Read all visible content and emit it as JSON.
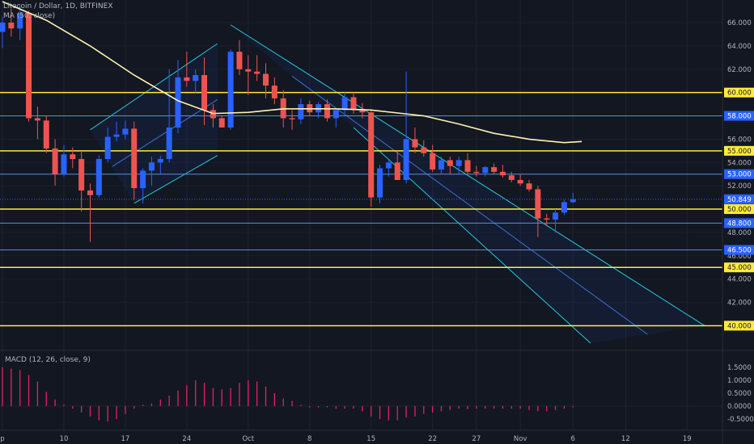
{
  "header": {
    "symbol": "Litecoin / Dollar, 1D, BITFINEX",
    "indicator": "MA (50, close)"
  },
  "macd": {
    "label": "MACD (12, 26, close, 9)",
    "ticks": [
      "1.5000",
      "1.0000",
      "0.5000",
      "0.0000",
      "-0.5000"
    ]
  },
  "colors": {
    "background": "#131722",
    "up": "#2962ff",
    "down": "#ef5350",
    "ma": "#fff3b0",
    "horizontal_yellow": "#ffeb3b",
    "horizontal_blue": "#5b8fd6",
    "channel": "#26c6da",
    "macd_hist": "#e91e63",
    "last_price": "#2962ff"
  },
  "chart_data": {
    "type": "candlestick",
    "price_axis": {
      "ticks": [
        40,
        42,
        44,
        46,
        48,
        50,
        52,
        54,
        56,
        58,
        60,
        62,
        64,
        66
      ],
      "tick_labels": [
        "40.000",
        "42.000",
        "44.000",
        "46.000",
        "48.000",
        "50.000",
        "52.000",
        "54.000",
        "56.000",
        "58.000",
        "60.000",
        "62.000",
        "64.000",
        "66.000"
      ]
    },
    "x_axis": {
      "labels": [
        "p",
        "10",
        "17",
        "24",
        "Oct",
        "8",
        "15",
        "22",
        "27",
        "Nov",
        "6",
        "12",
        "19"
      ],
      "label_day_index": [
        0,
        7,
        14,
        21,
        28,
        35,
        42,
        49,
        54,
        59,
        65,
        71,
        78
      ]
    },
    "candles": [
      {
        "o": 65.2,
        "h": 66.5,
        "l": 63.8,
        "c": 66.0
      },
      {
        "o": 66.0,
        "h": 67.2,
        "l": 64.8,
        "c": 65.5
      },
      {
        "o": 65.5,
        "h": 67.5,
        "l": 64.5,
        "c": 66.8
      },
      {
        "o": 66.8,
        "h": 67.0,
        "l": 57.5,
        "c": 57.8
      },
      {
        "o": 57.8,
        "h": 58.8,
        "l": 56.0,
        "c": 57.6
      },
      {
        "o": 57.6,
        "h": 58.0,
        "l": 54.8,
        "c": 55.2
      },
      {
        "o": 55.2,
        "h": 56.0,
        "l": 52.0,
        "c": 53.0
      },
      {
        "o": 53.0,
        "h": 55.5,
        "l": 52.8,
        "c": 54.7
      },
      {
        "o": 54.7,
        "h": 55.3,
        "l": 53.5,
        "c": 54.3
      },
      {
        "o": 54.3,
        "h": 55.0,
        "l": 49.8,
        "c": 51.6
      },
      {
        "o": 51.6,
        "h": 52.2,
        "l": 47.2,
        "c": 51.2
      },
      {
        "o": 51.2,
        "h": 54.6,
        "l": 51.0,
        "c": 54.3
      },
      {
        "o": 54.3,
        "h": 57.0,
        "l": 54.0,
        "c": 56.2
      },
      {
        "o": 56.2,
        "h": 57.5,
        "l": 55.8,
        "c": 56.4
      },
      {
        "o": 56.4,
        "h": 57.6,
        "l": 56.0,
        "c": 56.9
      },
      {
        "o": 56.9,
        "h": 57.5,
        "l": 50.8,
        "c": 51.8
      },
      {
        "o": 51.8,
        "h": 53.5,
        "l": 50.5,
        "c": 53.3
      },
      {
        "o": 53.3,
        "h": 54.5,
        "l": 52.0,
        "c": 54.0
      },
      {
        "o": 54.0,
        "h": 54.6,
        "l": 53.0,
        "c": 54.3
      },
      {
        "o": 54.3,
        "h": 62.0,
        "l": 54.0,
        "c": 57.0
      },
      {
        "o": 57.0,
        "h": 62.8,
        "l": 56.5,
        "c": 61.3
      },
      {
        "o": 61.3,
        "h": 63.5,
        "l": 60.5,
        "c": 61.0
      },
      {
        "o": 61.0,
        "h": 62.0,
        "l": 60.0,
        "c": 61.5
      },
      {
        "o": 61.5,
        "h": 63.0,
        "l": 57.2,
        "c": 58.5
      },
      {
        "o": 58.5,
        "h": 59.0,
        "l": 57.0,
        "c": 57.8
      },
      {
        "o": 57.8,
        "h": 58.0,
        "l": 57.0,
        "c": 57.0
      },
      {
        "o": 57.0,
        "h": 63.7,
        "l": 56.8,
        "c": 63.5
      },
      {
        "o": 63.5,
        "h": 64.5,
        "l": 61.5,
        "c": 62.0
      },
      {
        "o": 62.0,
        "h": 63.2,
        "l": 59.8,
        "c": 61.8
      },
      {
        "o": 61.8,
        "h": 63.2,
        "l": 61.0,
        "c": 61.6
      },
      {
        "o": 61.6,
        "h": 62.5,
        "l": 59.5,
        "c": 60.6
      },
      {
        "o": 60.6,
        "h": 61.3,
        "l": 59.0,
        "c": 59.5
      },
      {
        "o": 59.5,
        "h": 60.2,
        "l": 57.0,
        "c": 57.8
      },
      {
        "o": 57.8,
        "h": 58.5,
        "l": 56.8,
        "c": 57.7
      },
      {
        "o": 57.7,
        "h": 59.5,
        "l": 57.3,
        "c": 59.0
      },
      {
        "o": 59.0,
        "h": 59.3,
        "l": 58.0,
        "c": 58.3
      },
      {
        "o": 58.3,
        "h": 59.2,
        "l": 57.8,
        "c": 59.0
      },
      {
        "o": 59.0,
        "h": 59.4,
        "l": 57.5,
        "c": 57.8
      },
      {
        "o": 57.8,
        "h": 58.5,
        "l": 57.0,
        "c": 58.5
      },
      {
        "o": 58.5,
        "h": 60.0,
        "l": 58.2,
        "c": 59.6
      },
      {
        "o": 59.6,
        "h": 60.0,
        "l": 58.2,
        "c": 58.6
      },
      {
        "o": 58.6,
        "h": 59.1,
        "l": 57.8,
        "c": 58.3
      },
      {
        "o": 58.3,
        "h": 58.5,
        "l": 50.2,
        "c": 51.0
      },
      {
        "o": 51.0,
        "h": 53.8,
        "l": 50.5,
        "c": 53.5
      },
      {
        "o": 53.5,
        "h": 54.2,
        "l": 52.8,
        "c": 54.0
      },
      {
        "o": 54.0,
        "h": 55.0,
        "l": 52.5,
        "c": 52.5
      },
      {
        "o": 52.5,
        "h": 61.8,
        "l": 52.2,
        "c": 56.0
      },
      {
        "o": 56.0,
        "h": 57.0,
        "l": 54.8,
        "c": 55.3
      },
      {
        "o": 55.3,
        "h": 55.9,
        "l": 54.5,
        "c": 54.8
      },
      {
        "o": 54.8,
        "h": 55.5,
        "l": 53.2,
        "c": 53.4
      },
      {
        "o": 53.4,
        "h": 54.5,
        "l": 53.0,
        "c": 54.2
      },
      {
        "o": 54.2,
        "h": 54.5,
        "l": 53.0,
        "c": 53.7
      },
      {
        "o": 53.7,
        "h": 54.5,
        "l": 53.0,
        "c": 54.2
      },
      {
        "o": 54.2,
        "h": 54.8,
        "l": 53.0,
        "c": 53.2
      },
      {
        "o": 53.2,
        "h": 53.7,
        "l": 52.8,
        "c": 53.1
      },
      {
        "o": 53.1,
        "h": 53.7,
        "l": 52.8,
        "c": 53.6
      },
      {
        "o": 53.6,
        "h": 53.9,
        "l": 53.0,
        "c": 53.2
      },
      {
        "o": 53.2,
        "h": 53.8,
        "l": 52.7,
        "c": 52.9
      },
      {
        "o": 52.9,
        "h": 53.2,
        "l": 52.3,
        "c": 52.5
      },
      {
        "o": 52.5,
        "h": 53.0,
        "l": 52.0,
        "c": 52.2
      },
      {
        "o": 52.2,
        "h": 52.5,
        "l": 51.5,
        "c": 51.7
      },
      {
        "o": 51.7,
        "h": 52.0,
        "l": 47.6,
        "c": 49.2
      },
      {
        "o": 49.2,
        "h": 49.6,
        "l": 48.6,
        "c": 49.1
      },
      {
        "o": 49.1,
        "h": 50.0,
        "l": 48.0,
        "c": 49.7
      },
      {
        "o": 49.7,
        "h": 50.8,
        "l": 49.5,
        "c": 50.6
      },
      {
        "o": 50.6,
        "h": 51.4,
        "l": 50.5,
        "c": 50.85
      }
    ],
    "ma50": {
      "name": "MA (50, close)",
      "points": [
        [
          0,
          67.8
        ],
        [
          5,
          66.2
        ],
        [
          10,
          64.0
        ],
        [
          15,
          61.5
        ],
        [
          20,
          59.3
        ],
        [
          24,
          58.2
        ],
        [
          28,
          58.3
        ],
        [
          32,
          58.6
        ],
        [
          38,
          58.6
        ],
        [
          42,
          58.5
        ],
        [
          48,
          58.0
        ],
        [
          52,
          57.3
        ],
        [
          56,
          56.5
        ],
        [
          60,
          56.0
        ],
        [
          64,
          55.7
        ],
        [
          66,
          55.8
        ]
      ]
    },
    "horizontal_levels": [
      {
        "value": 60.0,
        "label": "60.000",
        "color": "#ffeb3b"
      },
      {
        "value": 58.0,
        "label": "58.000",
        "color": "#5b8fd6"
      },
      {
        "value": 55.0,
        "label": "55.000",
        "color": "#ffeb3b"
      },
      {
        "value": 53.0,
        "label": "53.000",
        "color": "#5b8fd6"
      },
      {
        "value": 50.0,
        "label": "50.000",
        "color": "#ffeb3b"
      },
      {
        "value": 48.8,
        "label": "48.800",
        "color": "#5b8fd6"
      },
      {
        "value": 46.5,
        "label": "46.500",
        "color": "#5b8fd6"
      },
      {
        "value": 45.0,
        "label": "45.000",
        "color": "#ffeb3b"
      },
      {
        "value": 40.0,
        "label": "40.000",
        "color": "#ffeb3b"
      }
    ],
    "last_price": {
      "value": 50.849,
      "label": "50.849"
    },
    "channels": [
      {
        "upper": [
          [
            10,
            56.8
          ],
          [
            24.5,
            64.2
          ]
        ],
        "lower": [
          [
            15,
            50.5
          ],
          [
            24.5,
            54.6
          ]
        ]
      },
      {
        "upper": [
          [
            26,
            65.8
          ],
          [
            80,
            40.0
          ]
        ],
        "lower": [
          [
            40,
            57.0
          ],
          [
            67,
            38.5
          ]
        ]
      }
    ],
    "macd_histogram": {
      "values": [
        1.5,
        1.45,
        1.4,
        1.2,
        0.95,
        0.55,
        0.25,
        0.05,
        -0.1,
        -0.25,
        -0.4,
        -0.55,
        -0.6,
        -0.5,
        -0.3,
        -0.1,
        0.05,
        0.1,
        0.25,
        0.4,
        0.6,
        0.8,
        1.0,
        0.9,
        0.7,
        0.65,
        0.7,
        0.9,
        1.0,
        0.95,
        0.75,
        0.5,
        0.3,
        0.2,
        0.05,
        -0.05,
        -0.05,
        -0.05,
        -0.1,
        -0.1,
        -0.1,
        -0.2,
        -0.4,
        -0.5,
        -0.55,
        -0.55,
        -0.45,
        -0.4,
        -0.3,
        -0.25,
        -0.2,
        -0.15,
        -0.1,
        -0.12,
        -0.1,
        -0.1,
        -0.1,
        -0.1,
        -0.1,
        -0.1,
        -0.15,
        -0.2,
        -0.2,
        -0.15,
        -0.1,
        -0.05
      ]
    }
  }
}
